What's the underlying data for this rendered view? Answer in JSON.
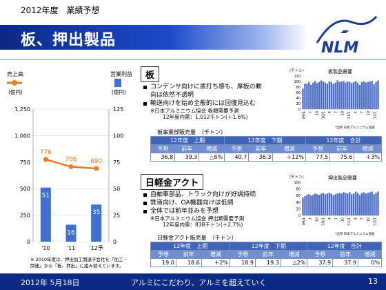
{
  "header": {
    "fiscal_label": "2012年度　業績予想",
    "title": "板、押出製品",
    "logo_text": "NLM"
  },
  "footer": {
    "date": "2012年 5月18日",
    "slogan": "アルミにこだわり、アルミを超えていく",
    "page": "13"
  },
  "left_chart": {
    "legend_sales": "売上高",
    "legend_profit": "営業利益",
    "unit_left": "(億円)",
    "unit_right": "(億円)",
    "note_line1": "※ 2010年度は、押出加工関連子会社を「加工・",
    "note_line2": "関連」から「板、押出」に組み替えています。"
  },
  "colors": {
    "sales_line": "#f07a1a",
    "profit_bar": "#3f6fd0",
    "title_band": "#0b2a86",
    "table_header": "#3f64b8",
    "table_subheader": "#6f8fd2",
    "table_value": "#b8cdf0"
  },
  "chart_data": [
    {
      "type": "bar",
      "categories": [
        "'10",
        "'11",
        "'12予"
      ],
      "series": [
        {
          "name": "売上高",
          "type": "line",
          "axis": "left",
          "values": [
            776,
            706,
            690
          ]
        },
        {
          "name": "営業利益",
          "type": "bar",
          "axis": "right",
          "values": [
            51,
            16,
            35
          ]
        }
      ],
      "left_axis": {
        "ticks": [
          "0",
          "250",
          "500",
          "750",
          "1,000",
          "1,250"
        ],
        "ylim": [
          0,
          1250
        ]
      },
      "right_axis": {
        "ticks": [
          "0",
          "25",
          "50",
          "75",
          "100",
          "125"
        ],
        "ylim": [
          0,
          125
        ]
      },
      "data_labels_sales": [
        "776",
        "706",
        "690"
      ],
      "data_labels_profit": [
        "51",
        "16",
        "35"
      ]
    },
    {
      "type": "bar",
      "title": "板製品需要",
      "unit": "(千トン)",
      "yticks": [
        "0",
        "20",
        "40",
        "60",
        "80",
        "100",
        "120"
      ],
      "ylim": [
        0,
        120
      ],
      "xticks": [
        "09/4",
        "7",
        "10",
        "'10/1",
        "4",
        "7",
        "10",
        "'11/1",
        "4",
        "7",
        "10",
        "'12/1"
      ],
      "values": [
        74,
        92,
        92,
        98,
        88,
        96,
        102,
        94,
        98,
        104,
        100,
        96,
        92,
        100,
        98,
        90,
        96,
        104,
        98,
        100,
        102,
        96,
        100,
        98,
        94,
        98,
        102,
        96,
        88,
        98,
        100,
        96,
        98,
        100,
        102,
        90,
        98,
        104
      ],
      "source": "*出所 日本アルミニウム協会"
    },
    {
      "type": "bar",
      "title": "押出製品需要",
      "unit": "(千トン)",
      "yticks": [
        "0",
        "20",
        "40",
        "60",
        "80",
        "100"
      ],
      "ylim": [
        0,
        100
      ],
      "xticks": [
        "09/4",
        "7",
        "10",
        "'10/1",
        "4",
        "7",
        "10",
        "'11/1",
        "4",
        "7",
        "10",
        "'12/1"
      ],
      "values": [
        54,
        58,
        62,
        64,
        60,
        62,
        66,
        64,
        62,
        66,
        68,
        64,
        66,
        68,
        66,
        60,
        64,
        66,
        68,
        66,
        70,
        68,
        66,
        70,
        64,
        66,
        72,
        68,
        62,
        68,
        70,
        66,
        68,
        70,
        72,
        64,
        68,
        72
      ],
      "source": "*出所 日本アルミニウム協会"
    }
  ],
  "sheet": {
    "heading": "板",
    "bullet1": "コンデンサ向けに底打ち感も、厚板の動",
    "bullet1b": "向は依然不透明",
    "bullet2": "輸送向けを始め全般的には回復見込む",
    "note1": "※日本アルミニウム協会 板類需要予測",
    "note2": "12年度内需：1,012千トン(＋1.6%)",
    "table_caption": "板事業部販売量　（千トン）",
    "headers": [
      "12年度　上期",
      "12年度　下期",
      "12年度　合計"
    ],
    "subheaders": [
      "予想",
      "前年",
      "増減"
    ],
    "values": [
      [
        "36.8",
        "39.3",
        "△6%"
      ],
      [
        "40.7",
        "36.3",
        "＋12%"
      ],
      [
        "77.5",
        "75.6",
        "＋3%"
      ]
    ]
  },
  "extrusion": {
    "heading": "日軽金アクト",
    "bullet1": "自動車部品、トラック向けが好調持続",
    "bullet2": "鉄道向け、OA機器向けは低調",
    "bullet3": "全体では前年並みを予想",
    "note1": "※日本アルミニウム協会 押出類需要予測",
    "note2": "12年度内需：838千トン(＋2.7%)",
    "table_caption": "日軽金アクト販売量　（千トン）",
    "headers": [
      "12年度　上期",
      "12年度　下期",
      "12年度　合計"
    ],
    "subheaders": [
      "予想",
      "前年",
      "増減"
    ],
    "values": [
      [
        "19.0",
        "18.6",
        "＋2%"
      ],
      [
        "18.9",
        "19.3",
        "△2%"
      ],
      [
        "37.9",
        "37.9",
        "0%"
      ]
    ]
  }
}
